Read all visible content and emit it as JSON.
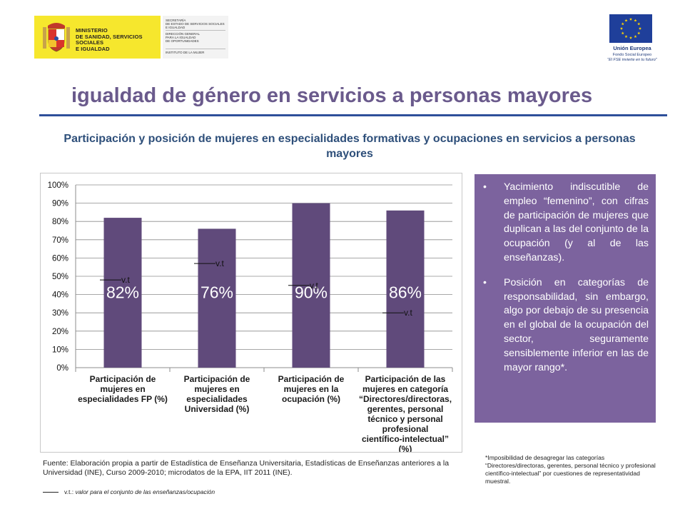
{
  "header": {
    "ministry_text": "MINISTERIO\nDE SANIDAD, SERVICIOS SOCIALES\nE IGUALDAD",
    "secretariat_text": "SECRETARÍA\nDE ESTADO DE SERVICIOS SOCIALES\nE IGUALDAD",
    "directorate_text": "DIRECCIÓN GENERAL\nPARA LA IGUALDAD\nDE OPORTUNIDADES",
    "institute_text": "INSTITUTO DE LA MUJER",
    "eu_title": "Unión Europea",
    "eu_subtitle": "Fondo Social Europeo",
    "eu_motto": "\"El FSE invierte en tu futuro\"",
    "gov_yellow": "#f6e72d",
    "eu_blue": "#1f3f9a",
    "eu_star": "#ffd400"
  },
  "title": "igualdad de género en servicios a personas mayores",
  "subtitle": "Participación y posición de mujeres en especialidades formativas y ocupaciones en servicios a personas mayores",
  "chart_data": {
    "type": "bar",
    "categories": [
      [
        "Participación de",
        "mujeres en",
        "especialidades FP (%)"
      ],
      [
        "Participación de",
        "mujeres en",
        "especialidades",
        "Universidad (%)"
      ],
      [
        "Participación de",
        "mujeres en la",
        "ocupación (%)"
      ],
      [
        "Participación de las",
        "mujeres en categoría",
        "“Directores/directoras,",
        "gerentes, personal",
        "técnico y personal",
        "profesional",
        "científico-intelectual”",
        "(%)"
      ]
    ],
    "values": [
      82,
      76,
      90,
      86
    ],
    "data_labels": [
      "82%",
      "76%",
      "90%",
      "86%"
    ],
    "reference_values": [
      48,
      57,
      45,
      30
    ],
    "reference_label": "v.t",
    "yticks": [
      "0%",
      "10%",
      "20%",
      "30%",
      "40%",
      "50%",
      "60%",
      "70%",
      "80%",
      "90%",
      "100%"
    ],
    "ylim": [
      0,
      100
    ],
    "grid": true,
    "bar_color": "#604a7b"
  },
  "info_box": {
    "bullet": "•",
    "items": [
      "Yacimiento indiscutible de empleo “femenino”, con cifras de participación de mujeres que duplican a las del conjunto de la ocupación (y al de las enseñanzas).",
      "Posición en categorías de responsabilidad, sin embargo, algo por debajo de su presencia en el global de la ocupación del sector, seguramente sensiblemente inferior en las de mayor rango*."
    ]
  },
  "footnote_right": "*Imposibilidad de desagregar las categorías “Directores/directoras, gerentes, personal técnico y profesional científico-intelectual” por cuestiones de representatividad muestral.",
  "source": "Fuente: Elaboración propia a partir de Estadística de Enseñanza Universitaria, Estadísticas de Enseñanzas anteriores a la Universidad (INE), Curso 2009-2010; microdatos de la EPA, IIT 2011 (INE).",
  "legend": {
    "abbr": "v.t.:",
    "desc": "valor para el conjunto de las enseñanzas/ocupación"
  }
}
